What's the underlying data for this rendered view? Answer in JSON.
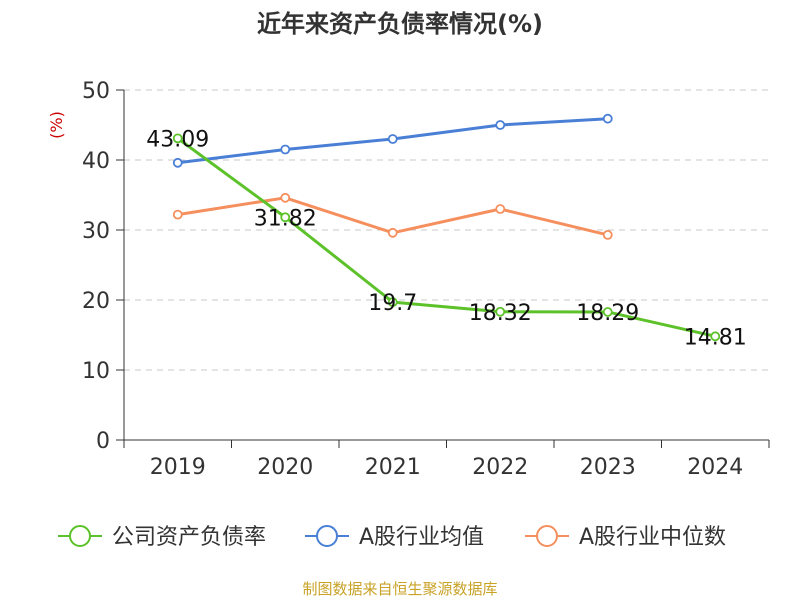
{
  "title": "近年来资产负债率情况(%)",
  "source": "制图数据来自恒生聚源数据库",
  "chart_data": {
    "type": "line",
    "title": "近年来资产负债率情况(%)",
    "ylabel": "(%)",
    "ylim": [
      0,
      50
    ],
    "yticks": [
      0,
      10,
      20,
      30,
      40,
      50
    ],
    "categories": [
      "2019",
      "2020",
      "2021",
      "2022",
      "2023",
      "2024"
    ],
    "grid": true,
    "legend_position": "bottom",
    "series": [
      {
        "name": "公司资产负债率",
        "color": "#5dc22a",
        "values": [
          43.09,
          31.82,
          19.7,
          18.32,
          18.29,
          14.81
        ],
        "labels": [
          "43.09",
          "31.82",
          "19.7",
          "18.32",
          "18.29",
          "14.81"
        ],
        "show_labels": true
      },
      {
        "name": "A股行业均值",
        "color": "#4a7fd6",
        "values": [
          39.6,
          41.5,
          43.0,
          45.0,
          45.9,
          null
        ],
        "show_labels": false
      },
      {
        "name": "A股行业中位数",
        "color": "#f58f5e",
        "values": [
          32.2,
          34.6,
          29.6,
          33.0,
          29.3,
          null
        ],
        "show_labels": false
      }
    ]
  }
}
